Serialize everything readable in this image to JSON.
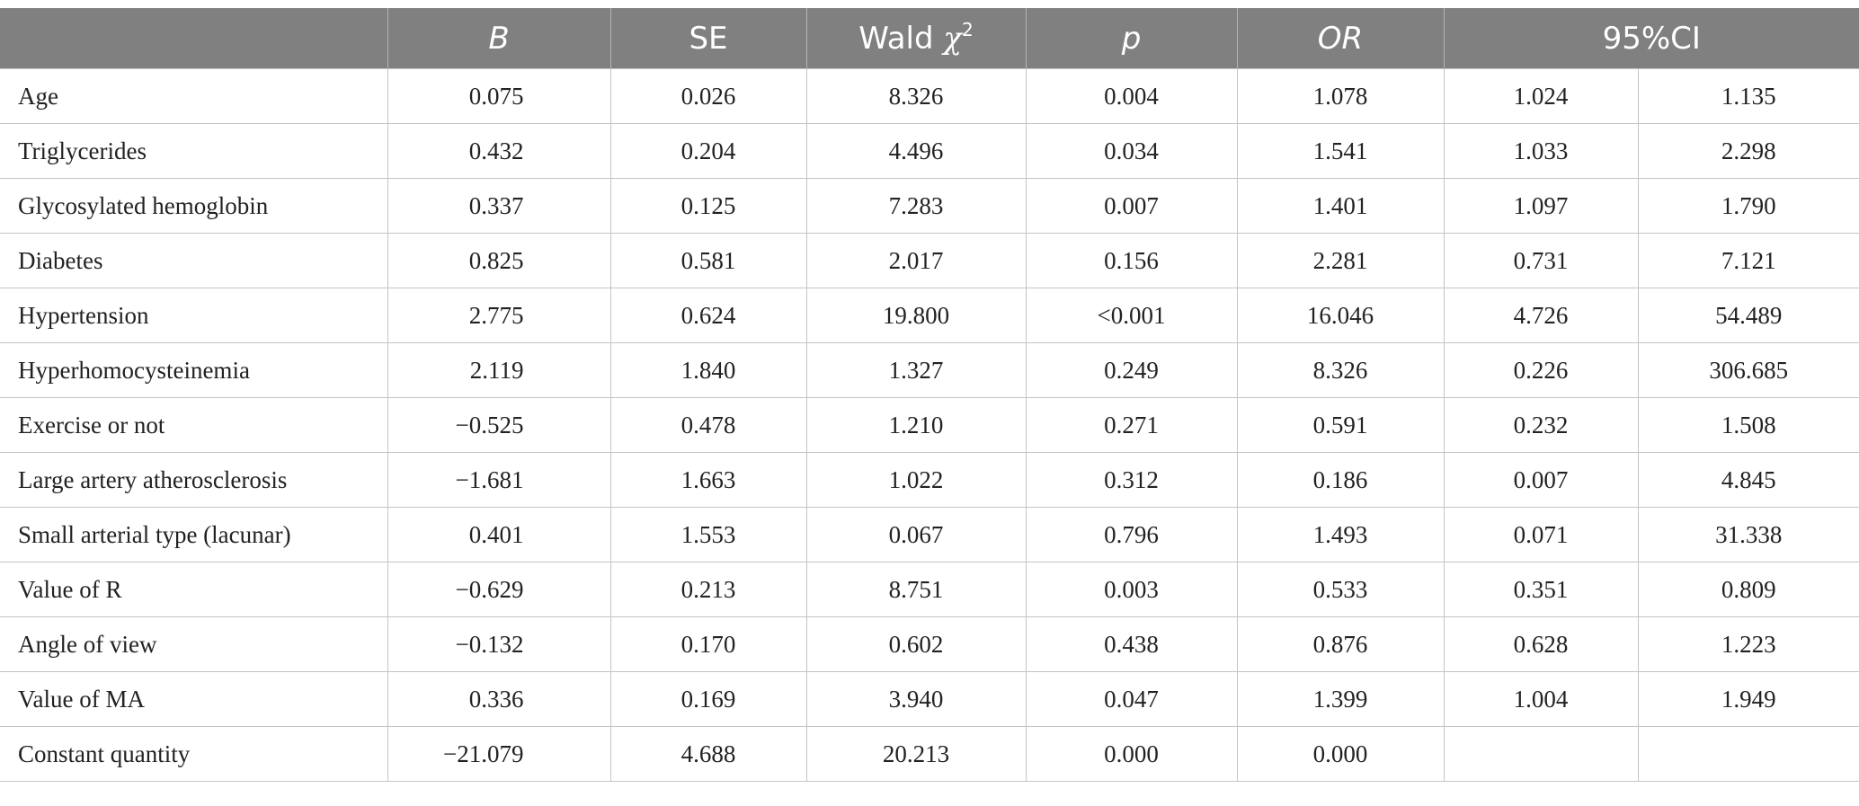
{
  "table": {
    "headers": {
      "label": "",
      "b": "B",
      "se": "SE",
      "wald_prefix": "Wald ",
      "wald_symbol": "χ",
      "wald_sup": "2",
      "p": "p",
      "or": "OR",
      "ci": "95%CI"
    },
    "rows": [
      {
        "label": "Age",
        "b": "0.075",
        "se": "0.026",
        "wald": "8.326",
        "p": "0.004",
        "or": "1.078",
        "ci_low": "1.024",
        "ci_high": "1.135"
      },
      {
        "label": "Triglycerides",
        "b": "0.432",
        "se": "0.204",
        "wald": "4.496",
        "p": "0.034",
        "or": "1.541",
        "ci_low": "1.033",
        "ci_high": "2.298"
      },
      {
        "label": "Glycosylated hemoglobin",
        "b": "0.337",
        "se": "0.125",
        "wald": "7.283",
        "p": "0.007",
        "or": "1.401",
        "ci_low": "1.097",
        "ci_high": "1.790"
      },
      {
        "label": "Diabetes",
        "b": "0.825",
        "se": "0.581",
        "wald": "2.017",
        "p": "0.156",
        "or": "2.281",
        "ci_low": "0.731",
        "ci_high": "7.121"
      },
      {
        "label": "Hypertension",
        "b": "2.775",
        "se": "0.624",
        "wald": "19.800",
        "p": "<0.001",
        "or": "16.046",
        "ci_low": "4.726",
        "ci_high": "54.489"
      },
      {
        "label": "Hyperhomocysteinemia",
        "b": "2.119",
        "se": "1.840",
        "wald": "1.327",
        "p": "0.249",
        "or": "8.326",
        "ci_low": "0.226",
        "ci_high": "306.685"
      },
      {
        "label": "Exercise or not",
        "b": "−0.525",
        "se": "0.478",
        "wald": "1.210",
        "p": "0.271",
        "or": "0.591",
        "ci_low": "0.232",
        "ci_high": "1.508"
      },
      {
        "label": "Large artery atherosclerosis",
        "b": "−1.681",
        "se": "1.663",
        "wald": "1.022",
        "p": "0.312",
        "or": "0.186",
        "ci_low": "0.007",
        "ci_high": "4.845"
      },
      {
        "label": "Small arterial type (lacunar)",
        "b": "0.401",
        "se": "1.553",
        "wald": "0.067",
        "p": "0.796",
        "or": "1.493",
        "ci_low": "0.071",
        "ci_high": "31.338"
      },
      {
        "label": "Value of R",
        "b": "−0.629",
        "se": "0.213",
        "wald": "8.751",
        "p": "0.003",
        "or": "0.533",
        "ci_low": "0.351",
        "ci_high": "0.809"
      },
      {
        "label": "Angle of view",
        "b": "−0.132",
        "se": "0.170",
        "wald": "0.602",
        "p": "0.438",
        "or": "0.876",
        "ci_low": "0.628",
        "ci_high": "1.223"
      },
      {
        "label": "Value of MA",
        "b": "0.336",
        "se": "0.169",
        "wald": "3.940",
        "p": "0.047",
        "or": "1.399",
        "ci_low": "1.004",
        "ci_high": "1.949"
      },
      {
        "label": "Constant quantity",
        "b": "−21.079",
        "se": "4.688",
        "wald": "20.213",
        "p": "0.000",
        "or": "0.000",
        "ci_low": "",
        "ci_high": ""
      }
    ]
  }
}
